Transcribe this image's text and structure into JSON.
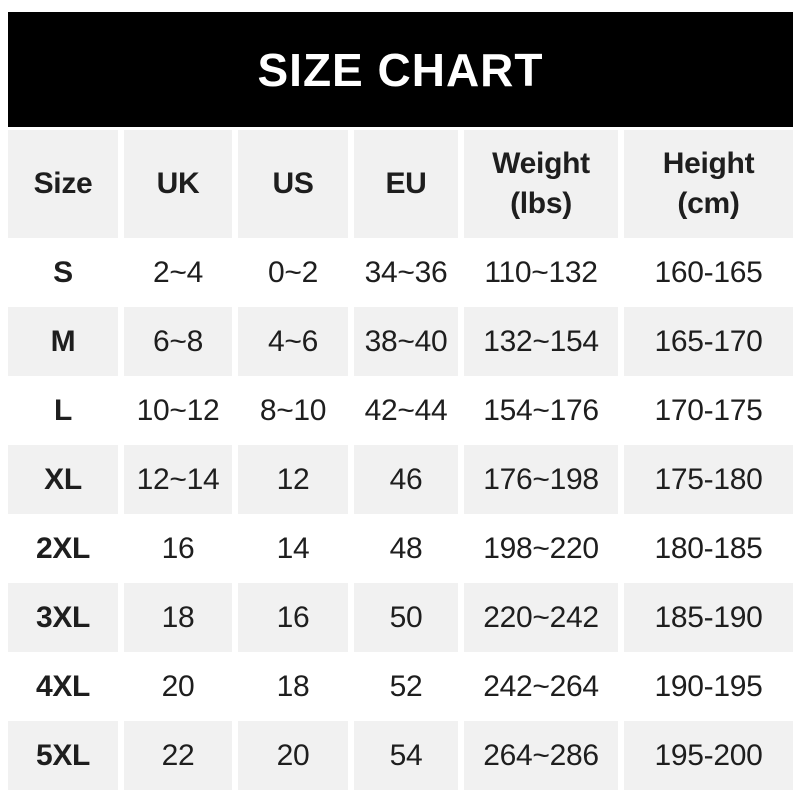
{
  "banner": {
    "title": "SIZE CHART"
  },
  "colors": {
    "banner_bg": "#000000",
    "banner_text": "#ffffff",
    "alt_row_bg": "#f1f1f1",
    "text": "#1e1e1e",
    "page_bg": "#ffffff"
  },
  "chart_data": {
    "type": "table",
    "title": "SIZE CHART",
    "columns": [
      "Size",
      "UK",
      "US",
      "EU",
      "Weight\n(lbs)",
      "Height\n(cm)"
    ],
    "rows": [
      [
        "S",
        "2~4",
        "0~2",
        "34~36",
        "110~132",
        "160-165"
      ],
      [
        "M",
        "6~8",
        "4~6",
        "38~40",
        "132~154",
        "165-170"
      ],
      [
        "L",
        "10~12",
        "8~10",
        "42~44",
        "154~176",
        "170-175"
      ],
      [
        "XL",
        "12~14",
        "12",
        "46",
        "176~198",
        "175-180"
      ],
      [
        "2XL",
        "16",
        "14",
        "48",
        "198~220",
        "180-185"
      ],
      [
        "3XL",
        "18",
        "16",
        "50",
        "220~242",
        "185-190"
      ],
      [
        "4XL",
        "20",
        "18",
        "52",
        "242~264",
        "190-195"
      ],
      [
        "5XL",
        "22",
        "20",
        "54",
        "264~286",
        "195-200"
      ]
    ],
    "layout": {
      "header_background": "#f1f1f1",
      "striped_rows_background": "#f1f1f1",
      "striped_rows": [
        "M",
        "XL",
        "3XL",
        "5XL"
      ],
      "plain_rows_background": "#ffffff",
      "legend_position": "none",
      "grid": "off"
    }
  }
}
